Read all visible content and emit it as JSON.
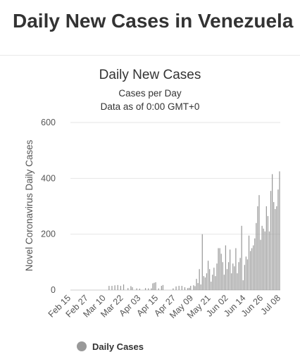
{
  "page": {
    "title": "Daily New Cases in Venezuela"
  },
  "chart_data": {
    "type": "bar",
    "title": "Daily New Cases",
    "subtitle_lines": [
      "Cases per Day",
      "Data as of 0:00 GMT+0"
    ],
    "xlabel": "",
    "ylabel": "Novel Coronavirus Daily Cases",
    "ylim": [
      0,
      600
    ],
    "yticks": [
      0,
      200,
      400,
      600
    ],
    "xtick_labels": [
      "Feb 15",
      "Feb 27",
      "Mar 10",
      "Mar 22",
      "Apr 03",
      "Apr 15",
      "Apr 27",
      "May 09",
      "May 21",
      "Jun 02",
      "Jun 14",
      "Jun 26",
      "Jul 08"
    ],
    "grid": true,
    "legend_position": "bottom",
    "colors": {
      "bar": "#999999",
      "grid": "#e6e6e6",
      "axis": "#cccccc"
    },
    "series": [
      {
        "name": "Daily Cases",
        "start_date": "2020-02-15",
        "values": [
          0,
          0,
          0,
          0,
          0,
          0,
          0,
          0,
          0,
          0,
          0,
          0,
          0,
          0,
          0,
          0,
          0,
          0,
          0,
          0,
          0,
          0,
          0,
          0,
          0,
          0,
          15,
          0,
          15,
          0,
          17,
          0,
          18,
          0,
          15,
          0,
          20,
          0,
          0,
          7,
          0,
          14,
          10,
          0,
          0,
          6,
          0,
          5,
          0,
          0,
          0,
          7,
          0,
          6,
          0,
          6,
          24,
          26,
          28,
          0,
          6,
          0,
          15,
          18,
          0,
          0,
          0,
          0,
          0,
          0,
          6,
          0,
          13,
          0,
          15,
          0,
          15,
          0,
          10,
          0,
          7,
          8,
          15,
          0,
          17,
          14,
          40,
          25,
          75,
          20,
          200,
          50,
          45,
          60,
          105,
          75,
          30,
          55,
          80,
          50,
          95,
          150,
          150,
          130,
          100,
          55,
          160,
          75,
          100,
          145,
          60,
          95,
          85,
          150,
          60,
          100,
          115,
          230,
          35,
          90,
          120,
          110,
          195,
          140,
          150,
          160,
          185,
          240,
          300,
          340,
          180,
          230,
          220,
          210,
          300,
          265,
          210,
          355,
          415,
          315,
          290,
          300,
          360,
          425
        ]
      }
    ]
  }
}
